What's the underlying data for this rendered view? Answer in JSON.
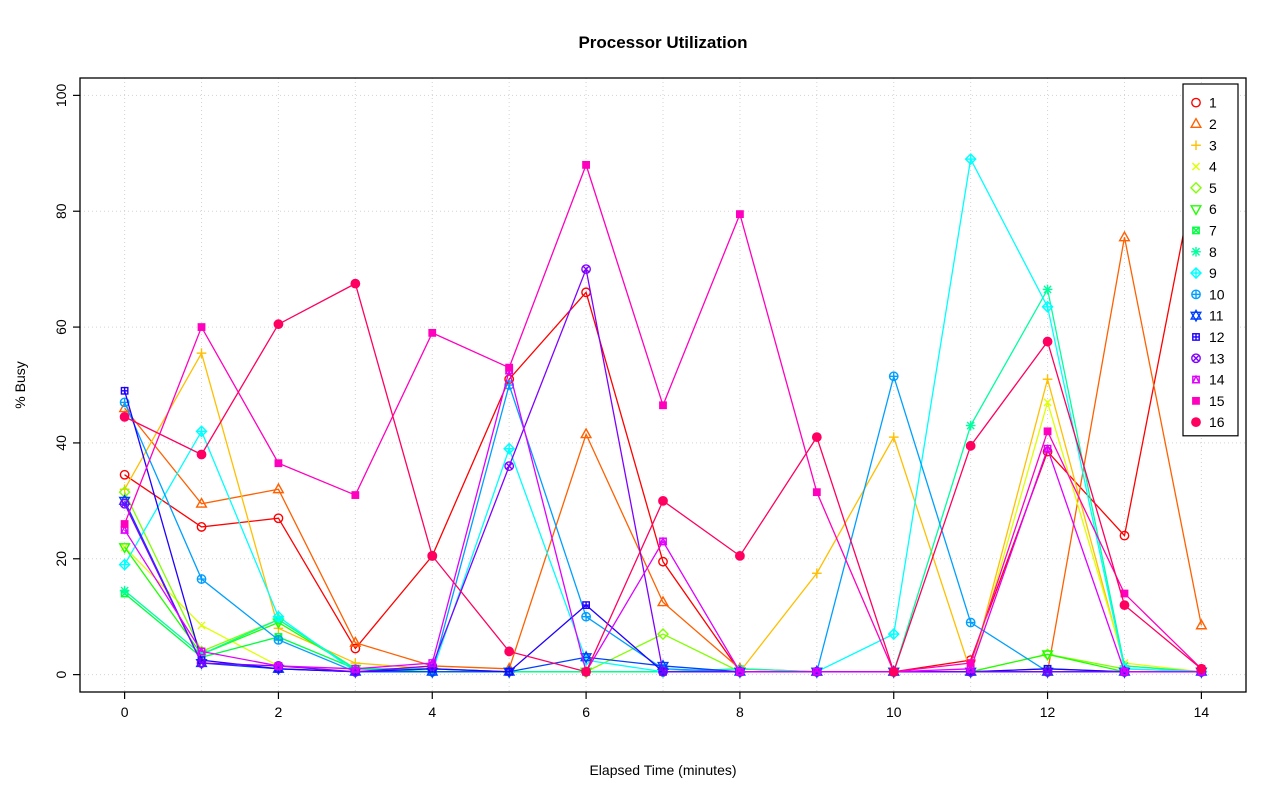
{
  "figure": {
    "background": "#FFFFFF",
    "axis_color": "#000000"
  },
  "chart_data": {
    "type": "line",
    "title": "Processor Utilization",
    "xlabel": "Elapsed Time (minutes)",
    "ylabel": "% Busy",
    "x": [
      0,
      1,
      2,
      3,
      4,
      5,
      6,
      7,
      8,
      9,
      10,
      11,
      12,
      13,
      14
    ],
    "xticks": [
      0,
      2,
      4,
      6,
      8,
      10,
      12,
      14
    ],
    "yticks": [
      0,
      20,
      40,
      60,
      80,
      100
    ],
    "xlim": [
      -0.58,
      14.58
    ],
    "ylim": [
      -3,
      103
    ],
    "grid": {
      "show": true,
      "color": "#D3D3D3",
      "style": "dotted",
      "x_step": 1
    },
    "legend": {
      "position": "top-right"
    },
    "series": [
      {
        "name": "1",
        "color": "#FF0000",
        "pch": 1,
        "values": [
          34.5,
          25.5,
          27,
          4.5,
          20.5,
          51,
          66,
          19.5,
          0.5,
          0.5,
          0.5,
          2.5,
          38.5,
          24,
          92
        ]
      },
      {
        "name": "2",
        "color": "#FF6000",
        "pch": 2,
        "values": [
          46,
          29.5,
          32,
          5.5,
          1.5,
          1,
          41.5,
          12.5,
          1,
          0.5,
          0.5,
          0.5,
          0.5,
          75.5,
          8.5
        ]
      },
      {
        "name": "3",
        "color": "#FFBF00",
        "pch": 3,
        "values": [
          32,
          55.5,
          8,
          2,
          1,
          0.5,
          0.5,
          0.5,
          0.5,
          17.5,
          41,
          0.5,
          51,
          1.5,
          0.5
        ]
      },
      {
        "name": "4",
        "color": "#DFFF00",
        "pch": 4,
        "values": [
          22,
          8.5,
          1.5,
          0.5,
          0.5,
          0.5,
          0.5,
          0.5,
          0.5,
          0.5,
          0.5,
          0.5,
          47,
          2,
          0.5
        ]
      },
      {
        "name": "5",
        "color": "#80FF00",
        "pch": 5,
        "values": [
          31.5,
          4,
          9.5,
          1,
          1,
          0.5,
          0.5,
          7,
          0.5,
          0.5,
          0.5,
          0.5,
          3.5,
          1,
          0.5
        ]
      },
      {
        "name": "6",
        "color": "#20FF00",
        "pch": 6,
        "values": [
          22,
          3.5,
          9,
          1,
          0.5,
          0.5,
          0.5,
          0.5,
          0.5,
          0.5,
          0.5,
          0.5,
          3.5,
          0.5,
          0.5
        ]
      },
      {
        "name": "7",
        "color": "#00FF40",
        "pch": 7,
        "values": [
          14,
          3,
          6.5,
          1,
          0.5,
          0.5,
          0.5,
          0.5,
          0.5,
          0.5,
          0.5,
          0.5,
          1,
          0.5,
          0.5
        ]
      },
      {
        "name": "8",
        "color": "#00FF9F",
        "pch": 8,
        "values": [
          14.5,
          3.5,
          9.5,
          1,
          1,
          0.5,
          0.5,
          0.5,
          1,
          0.5,
          0.5,
          43,
          66.5,
          1.5,
          0.5
        ]
      },
      {
        "name": "9",
        "color": "#00FFFF",
        "pch": 9,
        "values": [
          19,
          42,
          10,
          0.5,
          0.5,
          39,
          2.5,
          0.5,
          0.5,
          0.5,
          7,
          89,
          63.5,
          1,
          0.5
        ]
      },
      {
        "name": "10",
        "color": "#009FFF",
        "pch": 10,
        "values": [
          47,
          16.5,
          6,
          0.5,
          0.5,
          50,
          10,
          1,
          0.5,
          0.5,
          51.5,
          9,
          0.5,
          0.5,
          0.5
        ]
      },
      {
        "name": "11",
        "color": "#0040FF",
        "pch": 11,
        "values": [
          30,
          2,
          1,
          0.5,
          0.5,
          0.5,
          3,
          1.5,
          0.5,
          0.5,
          0.5,
          0.5,
          0.5,
          0.5,
          0.5
        ]
      },
      {
        "name": "12",
        "color": "#2000FF",
        "pch": 12,
        "values": [
          49,
          2.5,
          1,
          0.5,
          1,
          0.5,
          12,
          0.5,
          0.5,
          0.5,
          0.5,
          0.5,
          1,
          0.5,
          0.5
        ]
      },
      {
        "name": "13",
        "color": "#8000FF",
        "pch": 13,
        "values": [
          29.5,
          2,
          1.5,
          0.5,
          1.5,
          36,
          70,
          0.5,
          0.5,
          0.5,
          0.5,
          0.5,
          0.5,
          0.5,
          0.5
        ]
      },
      {
        "name": "14",
        "color": "#DF00FF",
        "pch": 14,
        "values": [
          25,
          4,
          1.5,
          1,
          2,
          52.5,
          0.5,
          23,
          0.5,
          0.5,
          0.5,
          1,
          39,
          0.5,
          0.5
        ]
      },
      {
        "name": "15",
        "color": "#FF00BF",
        "pch": 15,
        "values": [
          26,
          60,
          36.5,
          31,
          59,
          53,
          88,
          46.5,
          79.5,
          31.5,
          0.5,
          2,
          42,
          14,
          1
        ]
      },
      {
        "name": "16",
        "color": "#FF0060",
        "pch": 16,
        "values": [
          44.5,
          38,
          60.5,
          67.5,
          20.5,
          4,
          0.5,
          30,
          20.5,
          41,
          0.5,
          39.5,
          57.5,
          12,
          1
        ]
      }
    ]
  }
}
